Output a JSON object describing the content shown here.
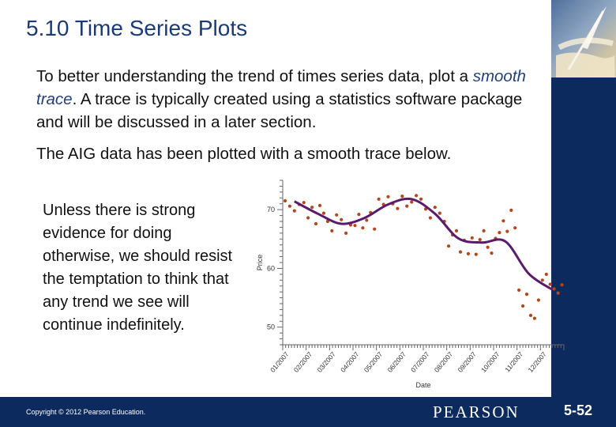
{
  "slide": {
    "title": "5.10 Time Series Plots",
    "p1_before": "To better understanding the trend of times series data, plot a ",
    "p1_highlight": "smooth trace",
    "p1_after": ". A trace is typically created using a statistics software package and will be discussed in a later section.",
    "p2": "The AIG data has been plotted with a smooth trace below.",
    "side_text": "Unless there is strong evidence for doing otherwise, we should resist the temptation to think that any trend we see will continue indefinitely."
  },
  "footer": {
    "copyright": "Copyright © 2012  Pearson Education.",
    "brand": "PEARSON",
    "slide_number": "5-52"
  },
  "colors": {
    "title": "#1a3a7a",
    "footer_bg": "#0c2a5e",
    "points": "#b5451b",
    "trace": "#5b1a6b"
  },
  "icons": [
    "quill-pen-parchment-icon"
  ],
  "chart_data": {
    "type": "scatter",
    "title": "",
    "xlabel": "Date",
    "ylabel": "Price",
    "y_ticks": [
      50,
      60,
      70
    ],
    "ylim": [
      47,
      75
    ],
    "x_tick_labels": [
      "01/2007",
      "02/2007",
      "03/2007",
      "04/2007",
      "05/2007",
      "06/2007",
      "07/2007",
      "08/2007",
      "09/2007",
      "10/2007",
      "11/2007",
      "12/2007"
    ],
    "grid": false,
    "series": [
      {
        "values": [
          [
            "01/2007",
            71.5
          ],
          [
            "01/2007",
            70.6
          ],
          [
            "01/2007",
            69.8
          ],
          [
            "01/2007",
            70.9
          ],
          [
            "01/2007",
            71.2
          ],
          [
            "02/2007",
            68.6
          ],
          [
            "02/2007",
            70.4
          ],
          [
            "02/2007",
            67.6
          ],
          [
            "02/2007",
            70.7
          ],
          [
            "02/2007",
            69.4
          ],
          [
            "02/2007",
            68.0
          ],
          [
            "03/2007",
            66.4
          ],
          [
            "03/2007",
            69.1
          ],
          [
            "03/2007",
            68.3
          ],
          [
            "03/2007",
            66.0
          ],
          [
            "03/2007",
            67.4
          ],
          [
            "04/2007",
            67.3
          ],
          [
            "04/2007",
            69.2
          ],
          [
            "04/2007",
            66.9
          ],
          [
            "04/2007",
            68.2
          ],
          [
            "04/2007",
            69.5
          ],
          [
            "04/2007",
            66.7
          ],
          [
            "05/2007",
            71.8
          ],
          [
            "05/2007",
            70.9
          ],
          [
            "05/2007",
            72.2
          ],
          [
            "05/2007",
            71.0
          ],
          [
            "05/2007",
            70.2
          ],
          [
            "06/2007",
            72.3
          ],
          [
            "06/2007",
            70.6
          ],
          [
            "06/2007",
            71.3
          ],
          [
            "06/2007",
            72.4
          ],
          [
            "06/2007",
            71.8
          ],
          [
            "07/2007",
            70.1
          ],
          [
            "07/2007",
            68.6
          ],
          [
            "07/2007",
            70.4
          ],
          [
            "07/2007",
            69.4
          ],
          [
            "07/2007",
            68.0
          ],
          [
            "08/2007",
            63.8
          ],
          [
            "08/2007",
            65.7
          ],
          [
            "08/2007",
            66.4
          ],
          [
            "08/2007",
            62.8
          ],
          [
            "08/2007",
            64.8
          ],
          [
            "08/2007",
            62.5
          ],
          [
            "09/2007",
            65.2
          ],
          [
            "09/2007",
            62.4
          ],
          [
            "09/2007",
            64.9
          ],
          [
            "09/2007",
            66.4
          ],
          [
            "09/2007",
            63.6
          ],
          [
            "09/2007",
            62.6
          ],
          [
            "10/2007",
            65.1
          ],
          [
            "10/2007",
            66.1
          ],
          [
            "10/2007",
            68.1
          ],
          [
            "10/2007",
            66.3
          ],
          [
            "10/2007",
            69.9
          ],
          [
            "10/2007",
            66.9
          ],
          [
            "11/2007",
            56.3
          ],
          [
            "11/2007",
            53.6
          ],
          [
            "11/2007",
            55.6
          ],
          [
            "11/2007",
            52.0
          ],
          [
            "11/2007",
            51.5
          ],
          [
            "11/2007",
            54.6
          ],
          [
            "12/2007",
            58.0
          ],
          [
            "12/2007",
            59.0
          ],
          [
            "12/2007",
            57.3
          ],
          [
            "12/2007",
            56.5
          ],
          [
            "12/2007",
            55.8
          ],
          [
            "12/2007",
            57.2
          ]
        ]
      },
      {
        "values": [
          [
            "01/2007",
            71.4
          ],
          [
            "02/2007",
            69.3
          ],
          [
            "03/2007",
            67.6
          ],
          [
            "04/2007",
            68.6
          ],
          [
            "05/2007",
            70.9
          ],
          [
            "06/2007",
            71.8
          ],
          [
            "07/2007",
            69.3
          ],
          [
            "08/2007",
            65.1
          ],
          [
            "09/2007",
            64.4
          ],
          [
            "10/2007",
            64.6
          ],
          [
            "11/2007",
            59.1
          ],
          [
            "12/2007",
            56.4
          ]
        ]
      }
    ]
  }
}
